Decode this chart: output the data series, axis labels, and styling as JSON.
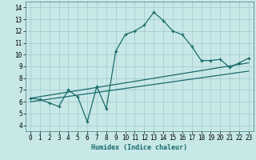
{
  "xlabel": "Humidex (Indice chaleur)",
  "xlim": [
    -0.5,
    23.5
  ],
  "ylim": [
    3.5,
    14.5
  ],
  "xticks": [
    0,
    1,
    2,
    3,
    4,
    5,
    6,
    7,
    8,
    9,
    10,
    11,
    12,
    13,
    14,
    15,
    16,
    17,
    18,
    19,
    20,
    21,
    22,
    23
  ],
  "yticks": [
    4,
    5,
    6,
    7,
    8,
    9,
    10,
    11,
    12,
    13,
    14
  ],
  "bg_color": "#c8e8e8",
  "line_color": "#1a6b6b",
  "grid_color": "#a0c8c8",
  "main_x": [
    0,
    1,
    2,
    3,
    4,
    5,
    6,
    7,
    8,
    9,
    10,
    11,
    12,
    13,
    14,
    15,
    16,
    17,
    18,
    19,
    20,
    21,
    22,
    23
  ],
  "main_y": [
    6.3,
    6.2,
    5.9,
    5.6,
    7.0,
    6.4,
    4.3,
    7.3,
    5.4,
    10.3,
    11.7,
    12.0,
    12.5,
    13.6,
    12.9,
    12.0,
    11.7,
    10.7,
    9.5,
    9.5,
    9.6,
    8.9,
    9.3,
    9.7
  ],
  "trend1_x": [
    0,
    23
  ],
  "trend1_y": [
    6.0,
    8.6
  ],
  "trend2_x": [
    0,
    23
  ],
  "trend2_y": [
    6.3,
    9.3
  ]
}
